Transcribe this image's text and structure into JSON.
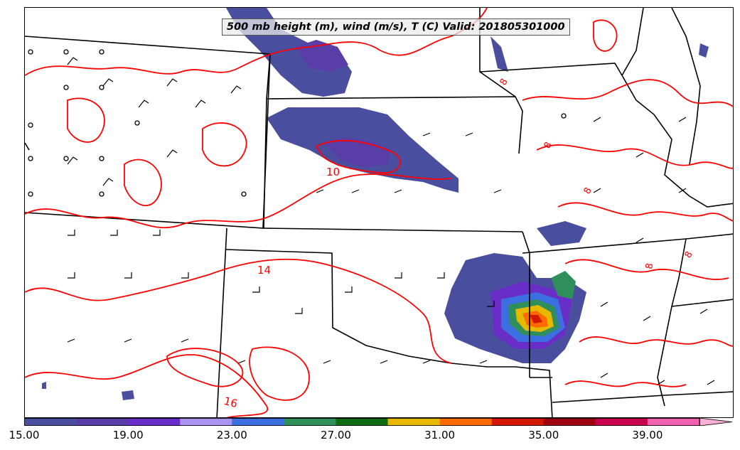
{
  "map": {
    "title": "500 mb height (m), wind (m/s), T (C) Valid: 201805301000",
    "region": "Central United States",
    "field_fill": "Wind speed (m/s)",
    "contour_field": "Temperature (C)",
    "contour_color": "#ff0000",
    "contour_labels": [
      "10",
      "14",
      "16",
      "8",
      "8",
      "8",
      "8",
      "8"
    ],
    "boundary_color": "#000000"
  },
  "colorbar": {
    "ticks": [
      "15.00",
      "19.00",
      "23.00",
      "27.00",
      "31.00",
      "35.00",
      "39.00"
    ],
    "tick_values": [
      15,
      19,
      23,
      27,
      31,
      35,
      39
    ],
    "range": [
      15,
      41
    ],
    "colors": [
      "#4a4e9e",
      "#5a3ea8",
      "#6a2ec8",
      "#a992f0",
      "#3c6fe0",
      "#2f8f5a",
      "#0f6a14",
      "#e6b800",
      "#ff6a00",
      "#d41800",
      "#9e0012",
      "#c8004e",
      "#f060b0",
      "#ffb0d8"
    ]
  }
}
